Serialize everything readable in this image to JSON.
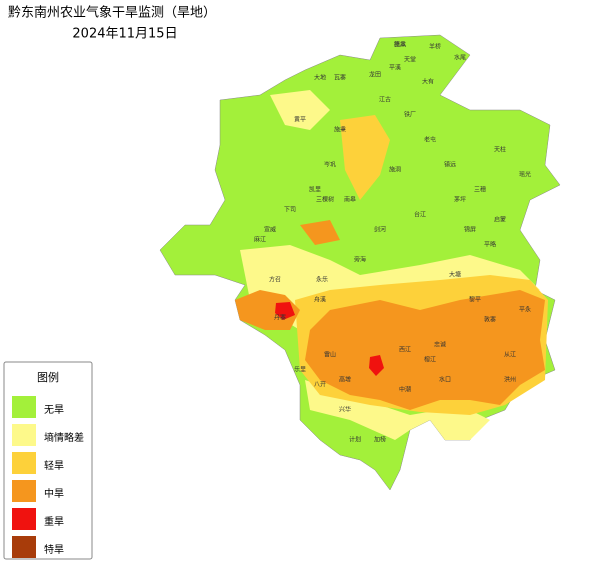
{
  "header": {
    "title": "黔东南州农业气象干旱监测（旱地）",
    "date": "2024年11月15日"
  },
  "legend": {
    "title": "图例",
    "items": [
      {
        "label": "无旱",
        "color": "#a3f03a"
      },
      {
        "label": "墒情略差",
        "color": "#fdf98a"
      },
      {
        "label": "轻旱",
        "color": "#fdd13a"
      },
      {
        "label": "中旱",
        "color": "#f5961e"
      },
      {
        "label": "重旱",
        "color": "#f0120f"
      },
      {
        "label": "特旱",
        "color": "#a83c0a"
      }
    ]
  },
  "places": [
    "凯本",
    "羊桥",
    "天堂",
    "水尾",
    "大有",
    "平溪",
    "龙田",
    "大地",
    "瓦寨",
    "江古",
    "铁厂",
    "台江",
    "施洞",
    "老屯",
    "榕江",
    "从江",
    "黎平",
    "锦屏",
    "天柱",
    "剑河",
    "雷山",
    "丹寨",
    "麻江",
    "凯里",
    "黄平",
    "施秉",
    "镇远",
    "岑巩",
    "三穗",
    "下司",
    "宣威",
    "南皋",
    "旁海",
    "三棵树",
    "舟溪",
    "永乐",
    "乐里",
    "忠诚",
    "平永",
    "洪州",
    "水口",
    "高增",
    "八开",
    "兴华",
    "计划",
    "加榜",
    "西江",
    "方召",
    "大塘",
    "平略",
    "启蒙",
    "茅坪",
    "瑶光",
    "敦寨",
    "中潮",
    "德凤"
  ]
}
